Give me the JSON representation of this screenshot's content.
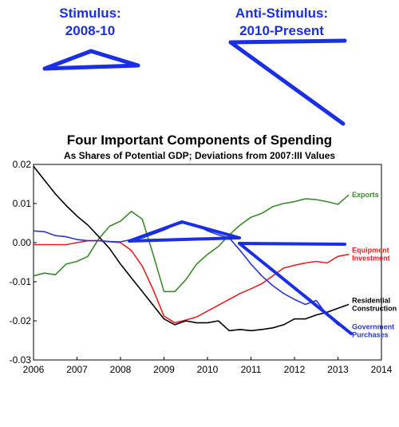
{
  "annotations": {
    "stimulus": {
      "line1": "Stimulus:",
      "line2": "2008-10"
    },
    "anti_stimulus": {
      "line1": "Anti-Stimulus:",
      "line2": "2010-Present"
    }
  },
  "colors": {
    "annotation_blue": "#1a2ee6",
    "exports": "#3a8a2a",
    "equipment_investment": "#e6201e",
    "residential_construction": "#000000",
    "government_purchases": "#2a37c8"
  },
  "chart_data": {
    "type": "line",
    "title": "Four Important Components of Spending",
    "subtitle": "As Shares of Potential GDP; Deviations from 2007:III Values",
    "xlabel": "",
    "ylabel": "",
    "xlim": [
      2006,
      2014
    ],
    "ylim": [
      -0.03,
      0.02
    ],
    "x_ticks": [
      "2006",
      "2007",
      "2008",
      "2009",
      "2010",
      "2011",
      "2012",
      "2013",
      "2014"
    ],
    "y_ticks": [
      "0.02",
      "0.01",
      "0.00",
      "-0.01",
      "-0.02",
      "-0.03"
    ],
    "series": [
      {
        "name": "Exports",
        "color": "#3a8a2a",
        "x": [
          2006.0,
          2006.25,
          2006.5,
          2006.75,
          2007.0,
          2007.25,
          2007.5,
          2007.75,
          2008.0,
          2008.25,
          2008.5,
          2008.75,
          2009.0,
          2009.25,
          2009.5,
          2009.75,
          2010.0,
          2010.25,
          2010.5,
          2010.75,
          2011.0,
          2011.25,
          2011.5,
          2011.75,
          2012.0,
          2012.25,
          2012.5,
          2012.75,
          2013.0,
          2013.25
        ],
        "y": [
          -0.0085,
          -0.0078,
          -0.0082,
          -0.0055,
          -0.0048,
          -0.0035,
          0.001,
          0.0042,
          0.0055,
          0.008,
          0.006,
          -0.003,
          -0.0125,
          -0.0125,
          -0.0095,
          -0.0055,
          -0.003,
          -0.001,
          0.002,
          0.0045,
          0.0065,
          0.0075,
          0.0092,
          0.01,
          0.0105,
          0.0112,
          0.011,
          0.0105,
          0.0098,
          0.0122
        ]
      },
      {
        "name": "Equipment Investment",
        "color": "#e6201e",
        "x": [
          2006.0,
          2006.25,
          2006.5,
          2006.75,
          2007.0,
          2007.25,
          2007.5,
          2007.75,
          2008.0,
          2008.25,
          2008.5,
          2008.75,
          2009.0,
          2009.25,
          2009.5,
          2009.75,
          2010.0,
          2010.25,
          2010.5,
          2010.75,
          2011.0,
          2011.25,
          2011.5,
          2011.75,
          2012.0,
          2012.25,
          2012.5,
          2012.75,
          2013.0,
          2013.25
        ],
        "y": [
          -0.0005,
          -0.0005,
          -0.0005,
          -0.0005,
          0.0,
          0.0005,
          0.0005,
          0.0002,
          0.0,
          -0.002,
          -0.006,
          -0.012,
          -0.0188,
          -0.0205,
          -0.0198,
          -0.019,
          -0.0175,
          -0.016,
          -0.0145,
          -0.013,
          -0.0118,
          -0.0105,
          -0.0085,
          -0.0065,
          -0.0058,
          -0.0052,
          -0.0048,
          -0.0052,
          -0.0035,
          -0.003
        ]
      },
      {
        "name": "Residential Construction",
        "color": "#000000",
        "x": [
          2006.0,
          2006.25,
          2006.5,
          2006.75,
          2007.0,
          2007.25,
          2007.5,
          2007.75,
          2008.0,
          2008.25,
          2008.5,
          2008.75,
          2009.0,
          2009.25,
          2009.5,
          2009.75,
          2010.0,
          2010.25,
          2010.5,
          2010.75,
          2011.0,
          2011.25,
          2011.5,
          2011.75,
          2012.0,
          2012.25,
          2012.5,
          2012.75,
          2013.0,
          2013.25
        ],
        "y": [
          0.0195,
          0.016,
          0.0125,
          0.0095,
          0.0068,
          0.0045,
          0.0015,
          -0.0015,
          -0.0055,
          -0.009,
          -0.0125,
          -0.016,
          -0.0195,
          -0.021,
          -0.02,
          -0.0205,
          -0.0205,
          -0.02,
          -0.0225,
          -0.0222,
          -0.0225,
          -0.0222,
          -0.0218,
          -0.021,
          -0.0195,
          -0.0195,
          -0.0185,
          -0.0178,
          -0.0168,
          -0.0158
        ]
      },
      {
        "name": "Government Purchases",
        "color": "#2a37c8",
        "x": [
          2006.0,
          2006.25,
          2006.5,
          2006.75,
          2007.0,
          2007.25,
          2007.5,
          2007.75,
          2008.0,
          2008.25,
          2008.5,
          2008.75,
          2009.0,
          2009.25,
          2009.5,
          2009.75,
          2010.0,
          2010.25,
          2010.5,
          2010.75,
          2011.0,
          2011.25,
          2011.5,
          2011.75,
          2012.0,
          2012.25,
          2012.5,
          2012.75,
          2013.0,
          2013.25
        ],
        "y": [
          0.003,
          0.0028,
          0.0018,
          0.0015,
          0.0008,
          0.0005,
          0.0005,
          0.0003,
          0.0002,
          0.0008,
          0.0012,
          0.0022,
          0.0032,
          0.0045,
          0.0052,
          0.0045,
          0.003,
          0.002,
          0.0012,
          -0.002,
          -0.0055,
          -0.0085,
          -0.011,
          -0.013,
          -0.0145,
          -0.0158,
          -0.0148,
          -0.0185,
          -0.021,
          -0.0225
        ]
      }
    ],
    "series_labels": [
      {
        "series": "Exports",
        "lines": [
          "Exports"
        ]
      },
      {
        "series": "Equipment Investment",
        "lines": [
          "Equipment",
          "Investment"
        ]
      },
      {
        "series": "Residential Construction",
        "lines": [
          "Residential",
          "Construction"
        ]
      },
      {
        "series": "Government Purchases",
        "lines": [
          "Government",
          "Purchases"
        ]
      }
    ],
    "grid": false,
    "legend": "inline-right"
  }
}
